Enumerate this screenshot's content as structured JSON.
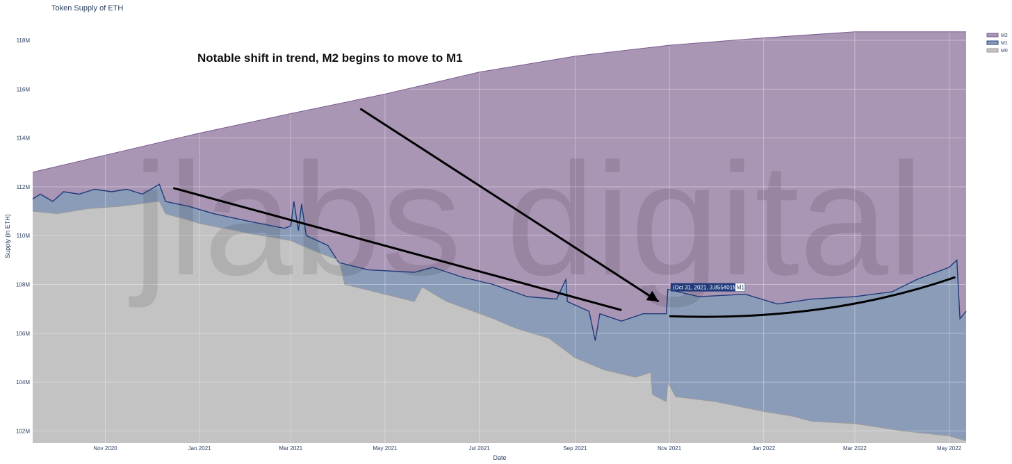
{
  "chart_data": {
    "type": "area",
    "title": "Token Supply of ETH",
    "xlabel": "Date",
    "ylabel": "Supply (in ETH)",
    "x_range": [
      "2020-09-15",
      "2022-05-12"
    ],
    "ylim": [
      101.5,
      118.4
    ],
    "y_ticks": [
      102,
      104,
      106,
      108,
      110,
      112,
      114,
      116,
      118
    ],
    "y_tick_labels": [
      "102M",
      "104M",
      "106M",
      "108M",
      "110M",
      "112M",
      "114M",
      "116M",
      "118M"
    ],
    "x_ticks": [
      "2020-11-01",
      "2021-01-01",
      "2021-03-01",
      "2021-05-01",
      "2021-07-01",
      "2021-09-01",
      "2021-11-01",
      "2022-01-01",
      "2022-03-01",
      "2022-05-01"
    ],
    "x_tick_labels": [
      "Nov 2020",
      "Jan 2021",
      "Mar 2021",
      "May 2021",
      "Jul 2021",
      "Sep 2021",
      "Nov 2021",
      "Jan 2022",
      "Mar 2022",
      "May 2022"
    ],
    "grid": true,
    "legend_position": "top-right",
    "series": [
      {
        "name": "M2",
        "color": "#7b5c8e",
        "fill": "#a995b4",
        "points": [
          [
            "2020-09-15",
            112.6
          ],
          [
            "2020-11-01",
            113.3
          ],
          [
            "2021-01-01",
            114.2
          ],
          [
            "2021-03-01",
            115.0
          ],
          [
            "2021-05-01",
            115.8
          ],
          [
            "2021-07-01",
            116.7
          ],
          [
            "2021-09-01",
            117.35
          ],
          [
            "2021-11-01",
            117.8
          ],
          [
            "2022-01-01",
            118.1
          ],
          [
            "2022-03-01",
            118.35
          ],
          [
            "2022-05-12",
            118.35
          ]
        ]
      },
      {
        "name": "M1",
        "color": "#1f3a7a",
        "fill": "#8b9cb8",
        "points": [
          [
            "2020-09-15",
            111.5
          ],
          [
            "2020-09-20",
            111.7
          ],
          [
            "2020-09-28",
            111.4
          ],
          [
            "2020-10-05",
            111.8
          ],
          [
            "2020-10-15",
            111.7
          ],
          [
            "2020-10-25",
            111.9
          ],
          [
            "2020-11-05",
            111.8
          ],
          [
            "2020-11-15",
            111.9
          ],
          [
            "2020-11-25",
            111.7
          ],
          [
            "2020-12-06",
            112.1
          ],
          [
            "2020-12-10",
            111.4
          ],
          [
            "2020-12-25",
            111.2
          ],
          [
            "2021-01-10",
            110.9
          ],
          [
            "2021-02-01",
            110.6
          ],
          [
            "2021-02-25",
            110.3
          ],
          [
            "2021-03-01",
            110.4
          ],
          [
            "2021-03-03",
            111.4
          ],
          [
            "2021-03-06",
            110.2
          ],
          [
            "2021-03-08",
            111.3
          ],
          [
            "2021-03-11",
            110.0
          ],
          [
            "2021-03-25",
            109.6
          ],
          [
            "2021-04-01",
            108.9
          ],
          [
            "2021-04-20",
            108.6
          ],
          [
            "2021-05-20",
            108.5
          ],
          [
            "2021-06-01",
            108.7
          ],
          [
            "2021-06-20",
            108.3
          ],
          [
            "2021-07-10",
            108.0
          ],
          [
            "2021-08-01",
            107.5
          ],
          [
            "2021-08-20",
            107.4
          ],
          [
            "2021-08-26",
            108.2
          ],
          [
            "2021-08-27",
            107.3
          ],
          [
            "2021-09-10",
            106.9
          ],
          [
            "2021-09-14",
            105.7
          ],
          [
            "2021-09-17",
            106.8
          ],
          [
            "2021-10-01",
            106.5
          ],
          [
            "2021-10-15",
            106.8
          ],
          [
            "2021-10-30",
            106.8
          ],
          [
            "2021-10-31",
            107.8
          ],
          [
            "2021-11-20",
            107.5
          ],
          [
            "2021-12-20",
            107.6
          ],
          [
            "2022-01-10",
            107.2
          ],
          [
            "2022-02-01",
            107.4
          ],
          [
            "2022-03-01",
            107.5
          ],
          [
            "2022-03-25",
            107.7
          ],
          [
            "2022-04-10",
            108.2
          ],
          [
            "2022-05-01",
            108.7
          ],
          [
            "2022-05-06",
            109.0
          ],
          [
            "2022-05-08",
            106.6
          ],
          [
            "2022-05-12",
            106.9
          ]
        ]
      },
      {
        "name": "M0",
        "color": "#9a9a9a",
        "fill": "#c3c3c3",
        "points": [
          [
            "2020-09-15",
            111.0
          ],
          [
            "2020-10-01",
            110.9
          ],
          [
            "2020-10-20",
            111.1
          ],
          [
            "2020-11-10",
            111.2
          ],
          [
            "2020-12-06",
            111.4
          ],
          [
            "2020-12-10",
            110.9
          ],
          [
            "2021-01-01",
            110.5
          ],
          [
            "2021-02-01",
            110.1
          ],
          [
            "2021-03-01",
            109.8
          ],
          [
            "2021-03-15",
            109.4
          ],
          [
            "2021-04-01",
            109.0
          ],
          [
            "2021-04-05",
            108.0
          ],
          [
            "2021-05-01",
            107.6
          ],
          [
            "2021-05-20",
            107.3
          ],
          [
            "2021-05-25",
            107.9
          ],
          [
            "2021-06-10",
            107.3
          ],
          [
            "2021-07-10",
            106.6
          ],
          [
            "2021-07-25",
            106.2
          ],
          [
            "2021-08-15",
            105.8
          ],
          [
            "2021-09-01",
            105.0
          ],
          [
            "2021-09-20",
            104.5
          ],
          [
            "2021-10-10",
            104.2
          ],
          [
            "2021-10-20",
            104.4
          ],
          [
            "2021-10-21",
            103.5
          ],
          [
            "2021-10-30",
            103.2
          ],
          [
            "2021-10-31",
            104.0
          ],
          [
            "2021-11-05",
            103.4
          ],
          [
            "2021-12-01",
            103.2
          ],
          [
            "2022-01-01",
            102.8
          ],
          [
            "2022-01-20",
            102.6
          ],
          [
            "2022-02-01",
            102.4
          ],
          [
            "2022-03-01",
            102.3
          ],
          [
            "2022-04-01",
            102.0
          ],
          [
            "2022-05-01",
            101.8
          ],
          [
            "2022-05-12",
            101.6
          ]
        ]
      }
    ],
    "hover_label": {
      "text": "(Oct 31, 2021, 3.855401M)",
      "series": "M1",
      "date": "2021-10-31",
      "y": 107.8
    },
    "annotations": [
      {
        "text": "Notable shift in trend, M2 begins to move to M1"
      }
    ],
    "trend_lines": [
      {
        "from": [
          "2020-12-15",
          111.95
        ],
        "to": [
          "2021-10-01",
          106.95
        ]
      },
      {
        "from": [
          "2021-11-01",
          106.7
        ],
        "to": [
          "2022-05-05",
          108.3
        ],
        "curved": true
      }
    ],
    "arrow": {
      "from": [
        "2021-04-15",
        115.2
      ],
      "to": [
        "2021-10-25",
        107.3
      ]
    },
    "watermark": "jlabs digital"
  }
}
